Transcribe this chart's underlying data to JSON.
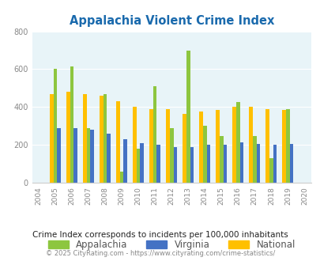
{
  "title": "Appalachia Violent Crime Index",
  "years": [
    2004,
    2005,
    2006,
    2007,
    2008,
    2009,
    2010,
    2011,
    2012,
    2013,
    2014,
    2015,
    2016,
    2017,
    2018,
    2019,
    2020
  ],
  "appalachia": [
    0,
    600,
    615,
    290,
    470,
    60,
    180,
    510,
    290,
    700,
    300,
    245,
    425,
    245,
    130,
    390,
    0
  ],
  "virginia": [
    0,
    290,
    290,
    280,
    260,
    230,
    210,
    200,
    190,
    190,
    200,
    200,
    215,
    205,
    200,
    205,
    0
  ],
  "national": [
    0,
    470,
    480,
    470,
    460,
    430,
    400,
    390,
    390,
    365,
    375,
    385,
    400,
    400,
    390,
    385,
    0
  ],
  "colors": {
    "appalachia": "#8dc63f",
    "virginia": "#4472c4",
    "national": "#ffc000"
  },
  "ylim": [
    0,
    800
  ],
  "yticks": [
    0,
    200,
    400,
    600,
    800
  ],
  "bg_color": "#e8f4f8",
  "subtitle": "Crime Index corresponds to incidents per 100,000 inhabitants",
  "footer": "© 2025 CityRating.com - https://www.cityrating.com/crime-statistics/",
  "title_color": "#1a6aad",
  "subtitle_color": "#222222",
  "footer_color": "#888888",
  "legend_label_color": "#555555",
  "bar_width": 0.22
}
